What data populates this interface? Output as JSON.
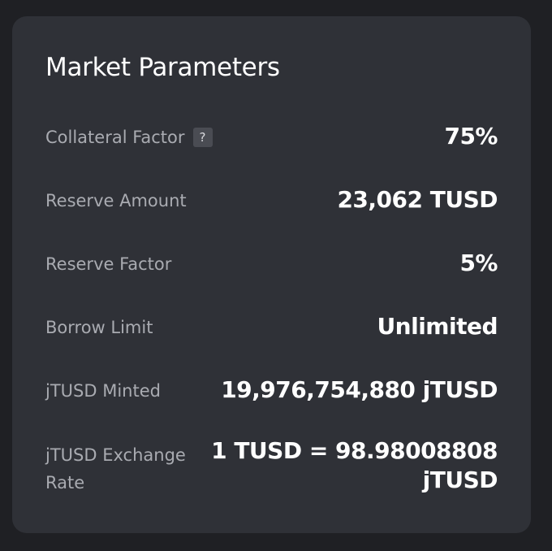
{
  "panel": {
    "title": "Market Parameters",
    "help_icon_glyph": "?",
    "rows": [
      {
        "label": "Collateral Factor",
        "value": "75%",
        "has_help": true
      },
      {
        "label": "Reserve Amount",
        "value": "23,062 TUSD"
      },
      {
        "label": "Reserve Factor",
        "value": "5%"
      },
      {
        "label": "Borrow Limit",
        "value": "Unlimited"
      },
      {
        "label": "jTUSD Minted",
        "value": "19,976,754,880 jTUSD"
      },
      {
        "label": "jTUSD Exchange Rate",
        "value": "1 TUSD = 98.98008808 jTUSD"
      }
    ]
  },
  "colors": {
    "page_background": "#1f2024",
    "card_background": "#2f3137",
    "label_text": "#a9abb1",
    "value_text": "#ffffff",
    "help_badge": "#4a4c53"
  }
}
